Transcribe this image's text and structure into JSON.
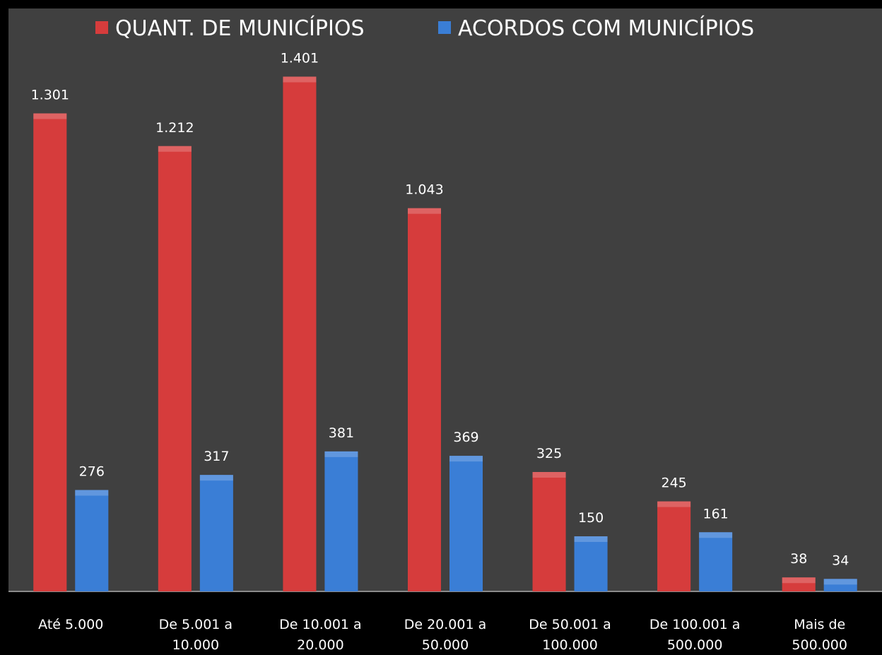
{
  "chart_data": {
    "type": "bar",
    "categories": [
      "Até 5.000",
      "De 5.001 a 10.000",
      "De 10.001 a 20.000",
      "De 20.001 a 50.000",
      "De 50.001 a 100.000",
      "De 100.001 a 500.000",
      "Mais de 500.000"
    ],
    "series": [
      {
        "name": "QUANT. DE MUNICÍPIOS",
        "color": "#d63c3c",
        "values": [
          1301,
          1212,
          1401,
          1043,
          325,
          245,
          38
        ],
        "value_labels": [
          "1.301",
          "1.212",
          "1.401",
          "1.043",
          "325",
          "245",
          "38"
        ]
      },
      {
        "name": "ACORDOS COM MUNICÍPIOS",
        "color": "#3a7ed6",
        "values": [
          276,
          317,
          381,
          369,
          150,
          161,
          34
        ],
        "value_labels": [
          "276",
          "317",
          "381",
          "369",
          "150",
          "161",
          "34"
        ]
      }
    ],
    "ylim": [
      0,
      1500
    ],
    "legend": "top"
  }
}
